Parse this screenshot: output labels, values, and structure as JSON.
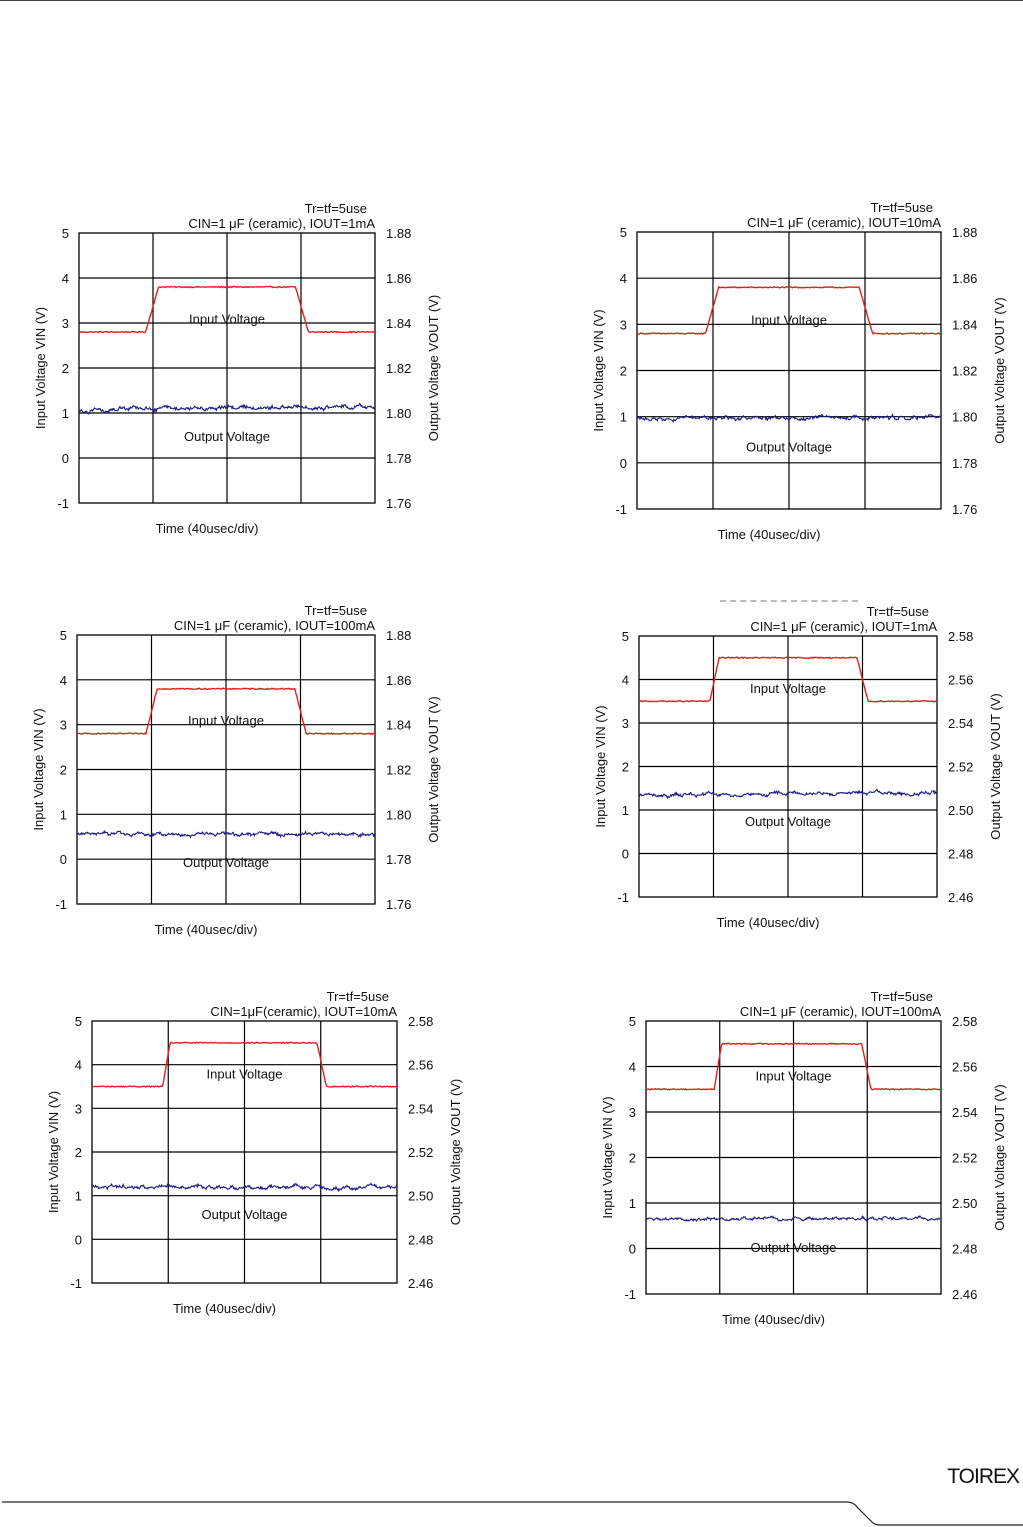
{
  "footer": {
    "logo_text": "TOIREX"
  },
  "colors": {
    "vin": "#e02020",
    "vout": "#1a1a80",
    "grid": "#000000"
  },
  "chart_data": [
    {
      "type": "line",
      "id": "c1",
      "title_line1": "Tr=tf=5use",
      "title_line2": "CIN=1 μF (ceramic), IOUT=1mA",
      "xlabel": "Time (40usec/div)",
      "ylabel_left": "Input Voltage VIN (V)",
      "ylabel_right": "Output Voltage VOUT (V)",
      "xlim": [
        0,
        160
      ],
      "ylim_left": [
        -1,
        5
      ],
      "ylim_right": [
        1.76,
        1.88
      ],
      "yticks_left": [
        "5",
        "4",
        "3",
        "2",
        "1",
        "0",
        "-1"
      ],
      "yticks_right": [
        "1.88",
        "1.86",
        "1.84",
        "1.82",
        "1.80",
        "1.78",
        "1.76"
      ],
      "annotations": [
        "Input Voltage",
        "Output Voltage"
      ],
      "series": [
        {
          "name": "Input Voltage",
          "axis": "left",
          "low": 2.8,
          "high": 3.8,
          "rise_start": 36,
          "rise_end": 43,
          "fall_start": 117,
          "fall_end": 124
        },
        {
          "name": "Output Voltage",
          "axis": "right",
          "mean": 1.8022,
          "trend": 0.0018,
          "noise": 0.0009
        }
      ]
    },
    {
      "type": "line",
      "id": "c2",
      "title_line1": "Tr=tf=5use",
      "title_line2": "CIN=1 μF (ceramic), IOUT=10mA",
      "xlabel": "Time (40usec/div)",
      "ylabel_left": "Input Voltage VIN (V)",
      "ylabel_right": "Output Voltage VOUT (V)",
      "xlim": [
        0,
        160
      ],
      "ylim_left": [
        -1,
        5
      ],
      "ylim_right": [
        1.76,
        1.88
      ],
      "yticks_left": [
        "5",
        "4",
        "3",
        "2",
        "1",
        "0",
        "-1"
      ],
      "yticks_right": [
        "1.88",
        "1.86",
        "1.84",
        "1.82",
        "1.80",
        "1.78",
        "1.76"
      ],
      "annotations": [
        "Input Voltage",
        "Output Voltage"
      ],
      "series": [
        {
          "name": "Input Voltage",
          "axis": "left",
          "low": 2.8,
          "high": 3.8,
          "rise_start": 36,
          "rise_end": 43,
          "fall_start": 117,
          "fall_end": 124
        },
        {
          "name": "Output Voltage",
          "axis": "right",
          "mean": 1.7995,
          "trend": 0.0006,
          "noise": 0.0008
        }
      ]
    },
    {
      "type": "line",
      "id": "c3",
      "title_line1": "Tr=tf=5use",
      "title_line2": "CIN=1 μF (ceramic), IOUT=100mA",
      "xlabel": "Time (40usec/div)",
      "ylabel_left": "Input Voltage VIN (V)",
      "ylabel_right": "Output Voltage VOUT (V)",
      "xlim": [
        0,
        160
      ],
      "ylim_left": [
        -1,
        5
      ],
      "ylim_right": [
        1.76,
        1.88
      ],
      "yticks_left": [
        "5",
        "4",
        "3",
        "2",
        "1",
        "0",
        "-1"
      ],
      "yticks_right": [
        "1.88",
        "1.86",
        "1.84",
        "1.82",
        "1.80",
        "1.78",
        "1.76"
      ],
      "annotations": [
        "Input Voltage",
        "Output Voltage"
      ],
      "series": [
        {
          "name": "Input Voltage",
          "axis": "left",
          "low": 2.8,
          "high": 3.8,
          "rise_start": 37,
          "rise_end": 43,
          "fall_start": 117,
          "fall_end": 123
        },
        {
          "name": "Output Voltage",
          "axis": "right",
          "mean": 1.7911,
          "trend": -0.0002,
          "noise": 0.0008
        }
      ]
    },
    {
      "type": "line",
      "id": "c4",
      "title_line1": "Tr=tf=5use",
      "title_line2": "CIN=1 μF (ceramic), IOUT=1mA",
      "xlabel": "Time (40usec/div)",
      "ylabel_left": "Input Voltage VIN (V)",
      "ylabel_right": "Output Voltage VOUT (V)",
      "xlim": [
        0,
        160
      ],
      "ylim_left": [
        -1,
        5
      ],
      "ylim_right": [
        2.46,
        2.58
      ],
      "yticks_left": [
        "5",
        "4",
        "3",
        "2",
        "1",
        "0",
        "-1"
      ],
      "yticks_right": [
        "2.58",
        "2.56",
        "2.54",
        "2.52",
        "2.50",
        "2.48",
        "2.46"
      ],
      "annotations": [
        "Input Voltage",
        "Output Voltage"
      ],
      "series": [
        {
          "name": "Input Voltage",
          "axis": "left",
          "low": 3.5,
          "high": 4.5,
          "rise_start": 38,
          "rise_end": 43,
          "fall_start": 117,
          "fall_end": 123
        },
        {
          "name": "Output Voltage",
          "axis": "right",
          "mean": 2.5074,
          "trend": 0.0008,
          "noise": 0.0008
        }
      ]
    },
    {
      "type": "line",
      "id": "c5",
      "title_line1": "Tr=tf=5use",
      "title_line2": "CIN=1μF(ceramic), IOUT=10mA",
      "xlabel": "Time (40usec/div)",
      "ylabel_left": "Input Voltage VIN (V)",
      "ylabel_right": "Output Voltage VOUT (V)",
      "xlim": [
        0,
        160
      ],
      "ylim_left": [
        -1,
        5
      ],
      "ylim_right": [
        2.46,
        2.58
      ],
      "yticks_left": [
        "5",
        "4",
        "3",
        "2",
        "1",
        "0",
        "-1"
      ],
      "yticks_right": [
        "2.58",
        "2.56",
        "2.54",
        "2.52",
        "2.50",
        "2.48",
        "2.46"
      ],
      "annotations": [
        "Input Voltage",
        "Output Voltage"
      ],
      "series": [
        {
          "name": "Input Voltage",
          "axis": "left",
          "low": 3.5,
          "high": 4.5,
          "rise_start": 37,
          "rise_end": 41,
          "fall_start": 118,
          "fall_end": 123
        },
        {
          "name": "Output Voltage",
          "axis": "right",
          "mean": 2.504,
          "trend": -0.0006,
          "noise": 0.0009
        }
      ]
    },
    {
      "type": "line",
      "id": "c6",
      "title_line1": "Tr=tf=5use",
      "title_line2": "CIN=1 μF (ceramic), IOUT=100mA",
      "xlabel": "Time (40usec/div)",
      "ylabel_left": "Input Voltage VIN (V)",
      "ylabel_right": "Output Voltage VOUT (V)",
      "xlim": [
        0,
        160
      ],
      "ylim_left": [
        -1,
        5
      ],
      "ylim_right": [
        2.46,
        2.58
      ],
      "yticks_left": [
        "5",
        "4",
        "3",
        "2",
        "1",
        "0",
        "-1"
      ],
      "yticks_right": [
        "2.58",
        "2.56",
        "2.54",
        "2.52",
        "2.50",
        "2.48",
        "2.46"
      ],
      "annotations": [
        "Input Voltage",
        "Output Voltage"
      ],
      "series": [
        {
          "name": "Input Voltage",
          "axis": "left",
          "low": 3.5,
          "high": 4.5,
          "rise_start": 37,
          "rise_end": 41,
          "fall_start": 117,
          "fall_end": 122
        },
        {
          "name": "Output Voltage",
          "axis": "right",
          "mean": 2.493,
          "trend": 0.0,
          "noise": 0.0007
        }
      ]
    }
  ]
}
